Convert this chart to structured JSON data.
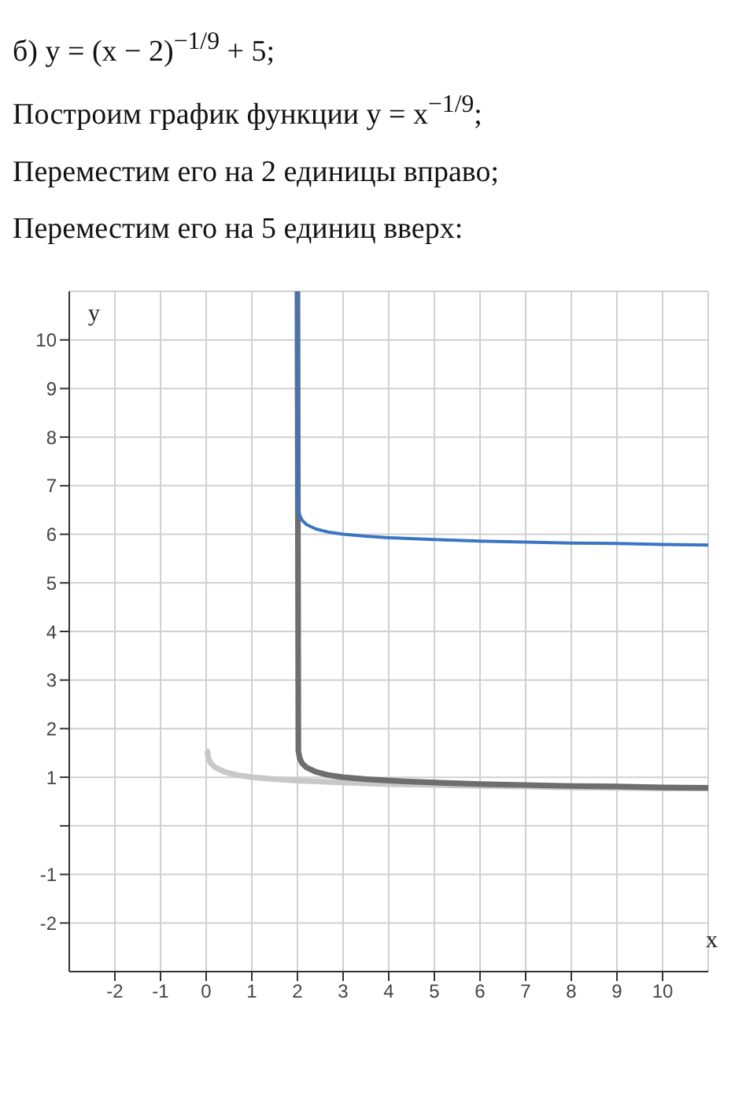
{
  "chart_data": {
    "type": "line",
    "title": "б) y = (x − 2)$^{−1/9}$ + 5;",
    "annotations": [
      "Построим график функции y = x$^{−1/9}$;",
      "Переместим его на 2 единицы вправо;",
      "Переместим его на 5 единиц вверх:"
    ],
    "xlabel": "x",
    "ylabel": "y",
    "xlim": [
      -3,
      11
    ],
    "ylim": [
      -3,
      11
    ],
    "xticks": [
      -2,
      -1,
      0,
      1,
      2,
      3,
      4,
      5,
      6,
      7,
      8,
      9,
      10
    ],
    "yticks": [
      -2,
      -1,
      {
        "value": 0,
        "label": null
      },
      1,
      2,
      3,
      4,
      5,
      6,
      7,
      8,
      9,
      10
    ],
    "grid": true,
    "marker": "none",
    "series": [
      {
        "color": "#c8c8c8",
        "x": [
          0,
          0.02,
          0.05,
          0.1,
          0.2,
          0.4,
          0.7,
          1,
          1.5,
          2,
          3,
          4,
          5,
          6,
          7,
          8,
          9,
          10,
          11
        ],
        "values": [
          1.55,
          1.54,
          1.39,
          1.29,
          1.2,
          1.11,
          1.04,
          1,
          0.96,
          0.93,
          0.89,
          0.86,
          0.84,
          0.82,
          0.81,
          0.79,
          0.78,
          0.77,
          0.77
        ]
      },
      {
        "color": "#6e6e6e",
        "x": [
          2,
          2.02,
          2.05,
          2.1,
          2.2,
          2.4,
          2.7,
          3,
          3.5,
          4,
          5,
          6,
          7,
          8,
          9,
          10,
          11
        ],
        "values": [
          11,
          1.54,
          1.39,
          1.29,
          1.2,
          1.11,
          1.04,
          1,
          0.96,
          0.93,
          0.89,
          0.86,
          0.84,
          0.82,
          0.81,
          0.79,
          0.78
        ]
      },
      {
        "color": "#3a75c4",
        "x": [
          2,
          2.02,
          2.05,
          2.1,
          2.2,
          2.4,
          2.7,
          3,
          3.5,
          4,
          5,
          6,
          7,
          8,
          9,
          10,
          11
        ],
        "values": [
          11,
          6.54,
          6.39,
          6.29,
          6.2,
          6.11,
          6.04,
          6,
          5.96,
          5.93,
          5.89,
          5.86,
          5.84,
          5.82,
          5.81,
          5.79,
          5.78
        ]
      }
    ]
  }
}
